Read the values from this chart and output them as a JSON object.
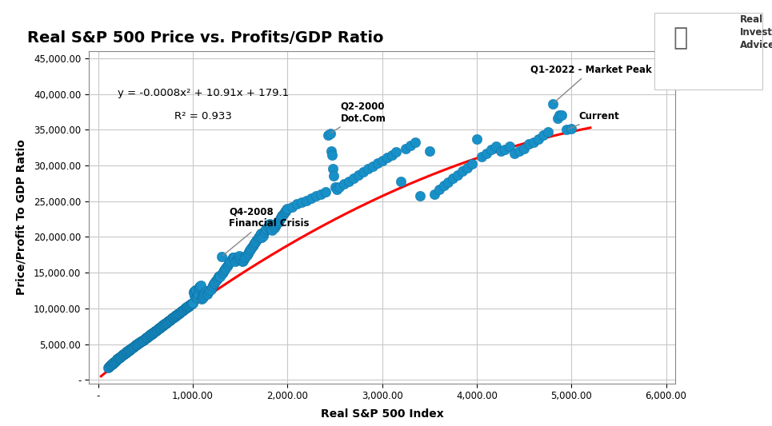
{
  "title": "Real S&P 500 Price vs. Profits/GDP Ratio",
  "xlabel": "Real S&P 500 Index",
  "ylabel": "Price/Profit To GDP Ratio",
  "equation_line1": "y = -0.0008x² + 10.91x + 179.1",
  "equation_line2": "R² = 0.933",
  "xlim": [
    -100,
    6100
  ],
  "ylim": [
    -500,
    46000
  ],
  "xticks": [
    0,
    1000,
    2000,
    3000,
    4000,
    5000,
    6000
  ],
  "xtick_labels": [
    "-",
    "1,000.00",
    "2,000.00",
    "3,000.00",
    "4,000.00",
    "5,000.00",
    "6,000.00"
  ],
  "yticks": [
    0,
    5000,
    10000,
    15000,
    20000,
    25000,
    30000,
    35000,
    40000,
    45000
  ],
  "ytick_labels": [
    "-",
    "5,000.00",
    "10,000.00",
    "15,000.00",
    "20,000.00",
    "25,000.00",
    "30,000.00",
    "35,000.00",
    "40,000.00",
    "45,000.00"
  ],
  "scatter_color": "#1E9FD8",
  "trendline_color": "#FF0000",
  "background_color": "#FFFFFF",
  "grid_color": "#C8C8C8",
  "poly_coeffs": [
    -0.0008,
    10.91,
    179.1
  ],
  "scatter_data": [
    [
      100,
      1700
    ],
    [
      110,
      1800
    ],
    [
      120,
      1900
    ],
    [
      125,
      2000
    ],
    [
      130,
      2050
    ],
    [
      135,
      2100
    ],
    [
      140,
      2150
    ],
    [
      145,
      2200
    ],
    [
      150,
      2300
    ],
    [
      155,
      2350
    ],
    [
      160,
      2400
    ],
    [
      165,
      2450
    ],
    [
      170,
      2500
    ],
    [
      175,
      2600
    ],
    [
      180,
      2650
    ],
    [
      185,
      2700
    ],
    [
      190,
      2750
    ],
    [
      195,
      2800
    ],
    [
      200,
      2900
    ],
    [
      205,
      2950
    ],
    [
      210,
      3000
    ],
    [
      215,
      3050
    ],
    [
      220,
      3100
    ],
    [
      225,
      3150
    ],
    [
      230,
      3200
    ],
    [
      235,
      3250
    ],
    [
      240,
      3300
    ],
    [
      245,
      3350
    ],
    [
      250,
      3400
    ],
    [
      255,
      3450
    ],
    [
      260,
      3500
    ],
    [
      265,
      3550
    ],
    [
      270,
      3600
    ],
    [
      275,
      3650
    ],
    [
      280,
      3700
    ],
    [
      285,
      3750
    ],
    [
      290,
      3800
    ],
    [
      295,
      3850
    ],
    [
      300,
      3900
    ],
    [
      305,
      3950
    ],
    [
      310,
      4000
    ],
    [
      315,
      4050
    ],
    [
      320,
      4100
    ],
    [
      325,
      4150
    ],
    [
      330,
      4200
    ],
    [
      335,
      4250
    ],
    [
      340,
      4300
    ],
    [
      345,
      4350
    ],
    [
      350,
      4400
    ],
    [
      355,
      4450
    ],
    [
      360,
      4500
    ],
    [
      365,
      4550
    ],
    [
      370,
      4600
    ],
    [
      375,
      4650
    ],
    [
      380,
      4700
    ],
    [
      385,
      4750
    ],
    [
      390,
      4800
    ],
    [
      395,
      4850
    ],
    [
      400,
      4900
    ],
    [
      405,
      4950
    ],
    [
      410,
      5000
    ],
    [
      415,
      5050
    ],
    [
      420,
      5100
    ],
    [
      425,
      5150
    ],
    [
      430,
      5200
    ],
    [
      435,
      5200
    ],
    [
      440,
      5250
    ],
    [
      445,
      5300
    ],
    [
      450,
      5350
    ],
    [
      455,
      5400
    ],
    [
      460,
      5450
    ],
    [
      465,
      5500
    ],
    [
      470,
      5500
    ],
    [
      475,
      5550
    ],
    [
      480,
      5600
    ],
    [
      485,
      5650
    ],
    [
      490,
      5700
    ],
    [
      495,
      5750
    ],
    [
      500,
      5800
    ],
    [
      505,
      5850
    ],
    [
      510,
      5900
    ],
    [
      515,
      5950
    ],
    [
      520,
      6000
    ],
    [
      525,
      6050
    ],
    [
      530,
      6100
    ],
    [
      535,
      6150
    ],
    [
      540,
      6200
    ],
    [
      545,
      6250
    ],
    [
      550,
      6300
    ],
    [
      555,
      6350
    ],
    [
      560,
      6400
    ],
    [
      565,
      6450
    ],
    [
      570,
      6500
    ],
    [
      575,
      6550
    ],
    [
      580,
      6600
    ],
    [
      585,
      6650
    ],
    [
      590,
      6700
    ],
    [
      595,
      6750
    ],
    [
      600,
      6800
    ],
    [
      605,
      6850
    ],
    [
      610,
      6900
    ],
    [
      615,
      6950
    ],
    [
      620,
      7000
    ],
    [
      625,
      7050
    ],
    [
      630,
      7100
    ],
    [
      635,
      7150
    ],
    [
      640,
      7200
    ],
    [
      645,
      7250
    ],
    [
      650,
      7300
    ],
    [
      655,
      7350
    ],
    [
      660,
      7400
    ],
    [
      665,
      7450
    ],
    [
      670,
      7500
    ],
    [
      675,
      7550
    ],
    [
      680,
      7600
    ],
    [
      685,
      7650
    ],
    [
      690,
      7700
    ],
    [
      695,
      7750
    ],
    [
      700,
      7800
    ],
    [
      705,
      7850
    ],
    [
      710,
      7900
    ],
    [
      715,
      7950
    ],
    [
      720,
      8000
    ],
    [
      725,
      8050
    ],
    [
      730,
      8100
    ],
    [
      735,
      8150
    ],
    [
      740,
      8200
    ],
    [
      745,
      8250
    ],
    [
      750,
      8300
    ],
    [
      755,
      8350
    ],
    [
      760,
      8400
    ],
    [
      765,
      8450
    ],
    [
      770,
      8500
    ],
    [
      775,
      8550
    ],
    [
      780,
      8600
    ],
    [
      785,
      8650
    ],
    [
      790,
      8700
    ],
    [
      795,
      8750
    ],
    [
      800,
      8800
    ],
    [
      805,
      8850
    ],
    [
      810,
      8900
    ],
    [
      815,
      8950
    ],
    [
      820,
      9000
    ],
    [
      825,
      9050
    ],
    [
      830,
      9100
    ],
    [
      835,
      9150
    ],
    [
      840,
      9200
    ],
    [
      845,
      9250
    ],
    [
      850,
      9300
    ],
    [
      855,
      9350
    ],
    [
      860,
      9400
    ],
    [
      865,
      9450
    ],
    [
      870,
      9500
    ],
    [
      875,
      9550
    ],
    [
      880,
      9600
    ],
    [
      885,
      9650
    ],
    [
      890,
      9700
    ],
    [
      895,
      9750
    ],
    [
      900,
      9800
    ],
    [
      905,
      9850
    ],
    [
      910,
      9900
    ],
    [
      915,
      9950
    ],
    [
      920,
      10000
    ],
    [
      925,
      10050
    ],
    [
      930,
      10100
    ],
    [
      935,
      10150
    ],
    [
      940,
      10200
    ],
    [
      945,
      10250
    ],
    [
      950,
      10300
    ],
    [
      955,
      10350
    ],
    [
      960,
      10400
    ],
    [
      965,
      10450
    ],
    [
      970,
      10500
    ],
    [
      975,
      10550
    ],
    [
      980,
      10600
    ],
    [
      985,
      10650
    ],
    [
      990,
      10700
    ],
    [
      995,
      10750
    ],
    [
      1000,
      10800
    ],
    [
      1005,
      12200
    ],
    [
      1010,
      12300
    ],
    [
      1015,
      11800
    ],
    [
      1020,
      12100
    ],
    [
      1025,
      12500
    ],
    [
      1030,
      12600
    ],
    [
      1035,
      11500
    ],
    [
      1040,
      11700
    ],
    [
      1045,
      11600
    ],
    [
      1050,
      11900
    ],
    [
      1055,
      12000
    ],
    [
      1060,
      12800
    ],
    [
      1065,
      12900
    ],
    [
      1070,
      13000
    ],
    [
      1075,
      13100
    ],
    [
      1080,
      13200
    ],
    [
      1090,
      11400
    ],
    [
      1095,
      11300
    ],
    [
      1100,
      11500
    ],
    [
      1105,
      11600
    ],
    [
      1110,
      11800
    ],
    [
      1120,
      12000
    ],
    [
      1130,
      12200
    ],
    [
      1140,
      12400
    ],
    [
      1150,
      12000
    ],
    [
      1160,
      12200
    ],
    [
      1170,
      12400
    ],
    [
      1180,
      12500
    ],
    [
      1190,
      12700
    ],
    [
      1200,
      13000
    ],
    [
      1210,
      13200
    ],
    [
      1220,
      13400
    ],
    [
      1230,
      13600
    ],
    [
      1240,
      13800
    ],
    [
      1250,
      14000
    ],
    [
      1260,
      14200
    ],
    [
      1270,
      14400
    ],
    [
      1280,
      14600
    ],
    [
      1290,
      14500
    ],
    [
      1300,
      17200
    ],
    [
      1310,
      14900
    ],
    [
      1320,
      15100
    ],
    [
      1330,
      15300
    ],
    [
      1340,
      15500
    ],
    [
      1350,
      15700
    ],
    [
      1360,
      15900
    ],
    [
      1370,
      16100
    ],
    [
      1380,
      16300
    ],
    [
      1390,
      16500
    ],
    [
      1400,
      16700
    ],
    [
      1410,
      16900
    ],
    [
      1420,
      17100
    ],
    [
      1430,
      17000
    ],
    [
      1440,
      17100
    ],
    [
      1450,
      16600
    ],
    [
      1460,
      16800
    ],
    [
      1470,
      17000
    ],
    [
      1480,
      17200
    ],
    [
      1490,
      17400
    ],
    [
      1500,
      17000
    ],
    [
      1510,
      16800
    ],
    [
      1520,
      16600
    ],
    [
      1530,
      16700
    ],
    [
      1540,
      16900
    ],
    [
      1550,
      17100
    ],
    [
      1560,
      17300
    ],
    [
      1570,
      17500
    ],
    [
      1580,
      17700
    ],
    [
      1590,
      17900
    ],
    [
      1600,
      18100
    ],
    [
      1610,
      18300
    ],
    [
      1620,
      18500
    ],
    [
      1630,
      18700
    ],
    [
      1640,
      18900
    ],
    [
      1650,
      19100
    ],
    [
      1660,
      19300
    ],
    [
      1670,
      19500
    ],
    [
      1680,
      19700
    ],
    [
      1690,
      19900
    ],
    [
      1700,
      20100
    ],
    [
      1710,
      20300
    ],
    [
      1720,
      20500
    ],
    [
      1730,
      19900
    ],
    [
      1740,
      20200
    ],
    [
      1750,
      20600
    ],
    [
      1760,
      20800
    ],
    [
      1770,
      21000
    ],
    [
      1780,
      21200
    ],
    [
      1790,
      21400
    ],
    [
      1800,
      21600
    ],
    [
      1810,
      21800
    ],
    [
      1820,
      21400
    ],
    [
      1830,
      21100
    ],
    [
      1840,
      20900
    ],
    [
      1850,
      21600
    ],
    [
      1860,
      21300
    ],
    [
      1870,
      21500
    ],
    [
      1880,
      21700
    ],
    [
      1890,
      21900
    ],
    [
      1900,
      22100
    ],
    [
      1910,
      22300
    ],
    [
      1920,
      22500
    ],
    [
      1930,
      22700
    ],
    [
      1940,
      22900
    ],
    [
      1950,
      23100
    ],
    [
      1960,
      23300
    ],
    [
      1970,
      23500
    ],
    [
      1980,
      23600
    ],
    [
      1990,
      23800
    ],
    [
      2000,
      24000
    ],
    [
      2050,
      24200
    ],
    [
      2100,
      24600
    ],
    [
      2150,
      24900
    ],
    [
      2200,
      25100
    ],
    [
      2250,
      25400
    ],
    [
      2300,
      25700
    ],
    [
      2350,
      26000
    ],
    [
      2400,
      26300
    ],
    [
      2430,
      34200
    ],
    [
      2450,
      34500
    ],
    [
      2460,
      32000
    ],
    [
      2470,
      31500
    ],
    [
      2480,
      29500
    ],
    [
      2490,
      28500
    ],
    [
      2500,
      27000
    ],
    [
      2520,
      26700
    ],
    [
      2550,
      27000
    ],
    [
      2600,
      27400
    ],
    [
      2650,
      27800
    ],
    [
      2700,
      28200
    ],
    [
      2750,
      28700
    ],
    [
      2800,
      29100
    ],
    [
      2850,
      29500
    ],
    [
      2900,
      29900
    ],
    [
      2950,
      30300
    ],
    [
      3000,
      30700
    ],
    [
      3050,
      31100
    ],
    [
      3100,
      31500
    ],
    [
      3150,
      31900
    ],
    [
      3200,
      27800
    ],
    [
      3250,
      32400
    ],
    [
      3300,
      32800
    ],
    [
      3350,
      33200
    ],
    [
      3400,
      25700
    ],
    [
      3500,
      32000
    ],
    [
      3550,
      26000
    ],
    [
      3600,
      26700
    ],
    [
      3650,
      27200
    ],
    [
      3700,
      27700
    ],
    [
      3750,
      28200
    ],
    [
      3800,
      28700
    ],
    [
      3850,
      29200
    ],
    [
      3900,
      29700
    ],
    [
      3950,
      30200
    ],
    [
      4000,
      33700
    ],
    [
      4050,
      31200
    ],
    [
      4100,
      31700
    ],
    [
      4150,
      32200
    ],
    [
      4200,
      32700
    ],
    [
      4250,
      32000
    ],
    [
      4300,
      32200
    ],
    [
      4350,
      32700
    ],
    [
      4400,
      31700
    ],
    [
      4450,
      32000
    ],
    [
      4500,
      32400
    ],
    [
      4550,
      33000
    ],
    [
      4600,
      33200
    ],
    [
      4650,
      33700
    ],
    [
      4700,
      34200
    ],
    [
      4750,
      34700
    ],
    [
      4800,
      38600
    ],
    [
      4850,
      36600
    ],
    [
      4870,
      37100
    ],
    [
      4900,
      37000
    ],
    [
      4950,
      35000
    ],
    [
      5000,
      35200
    ]
  ]
}
